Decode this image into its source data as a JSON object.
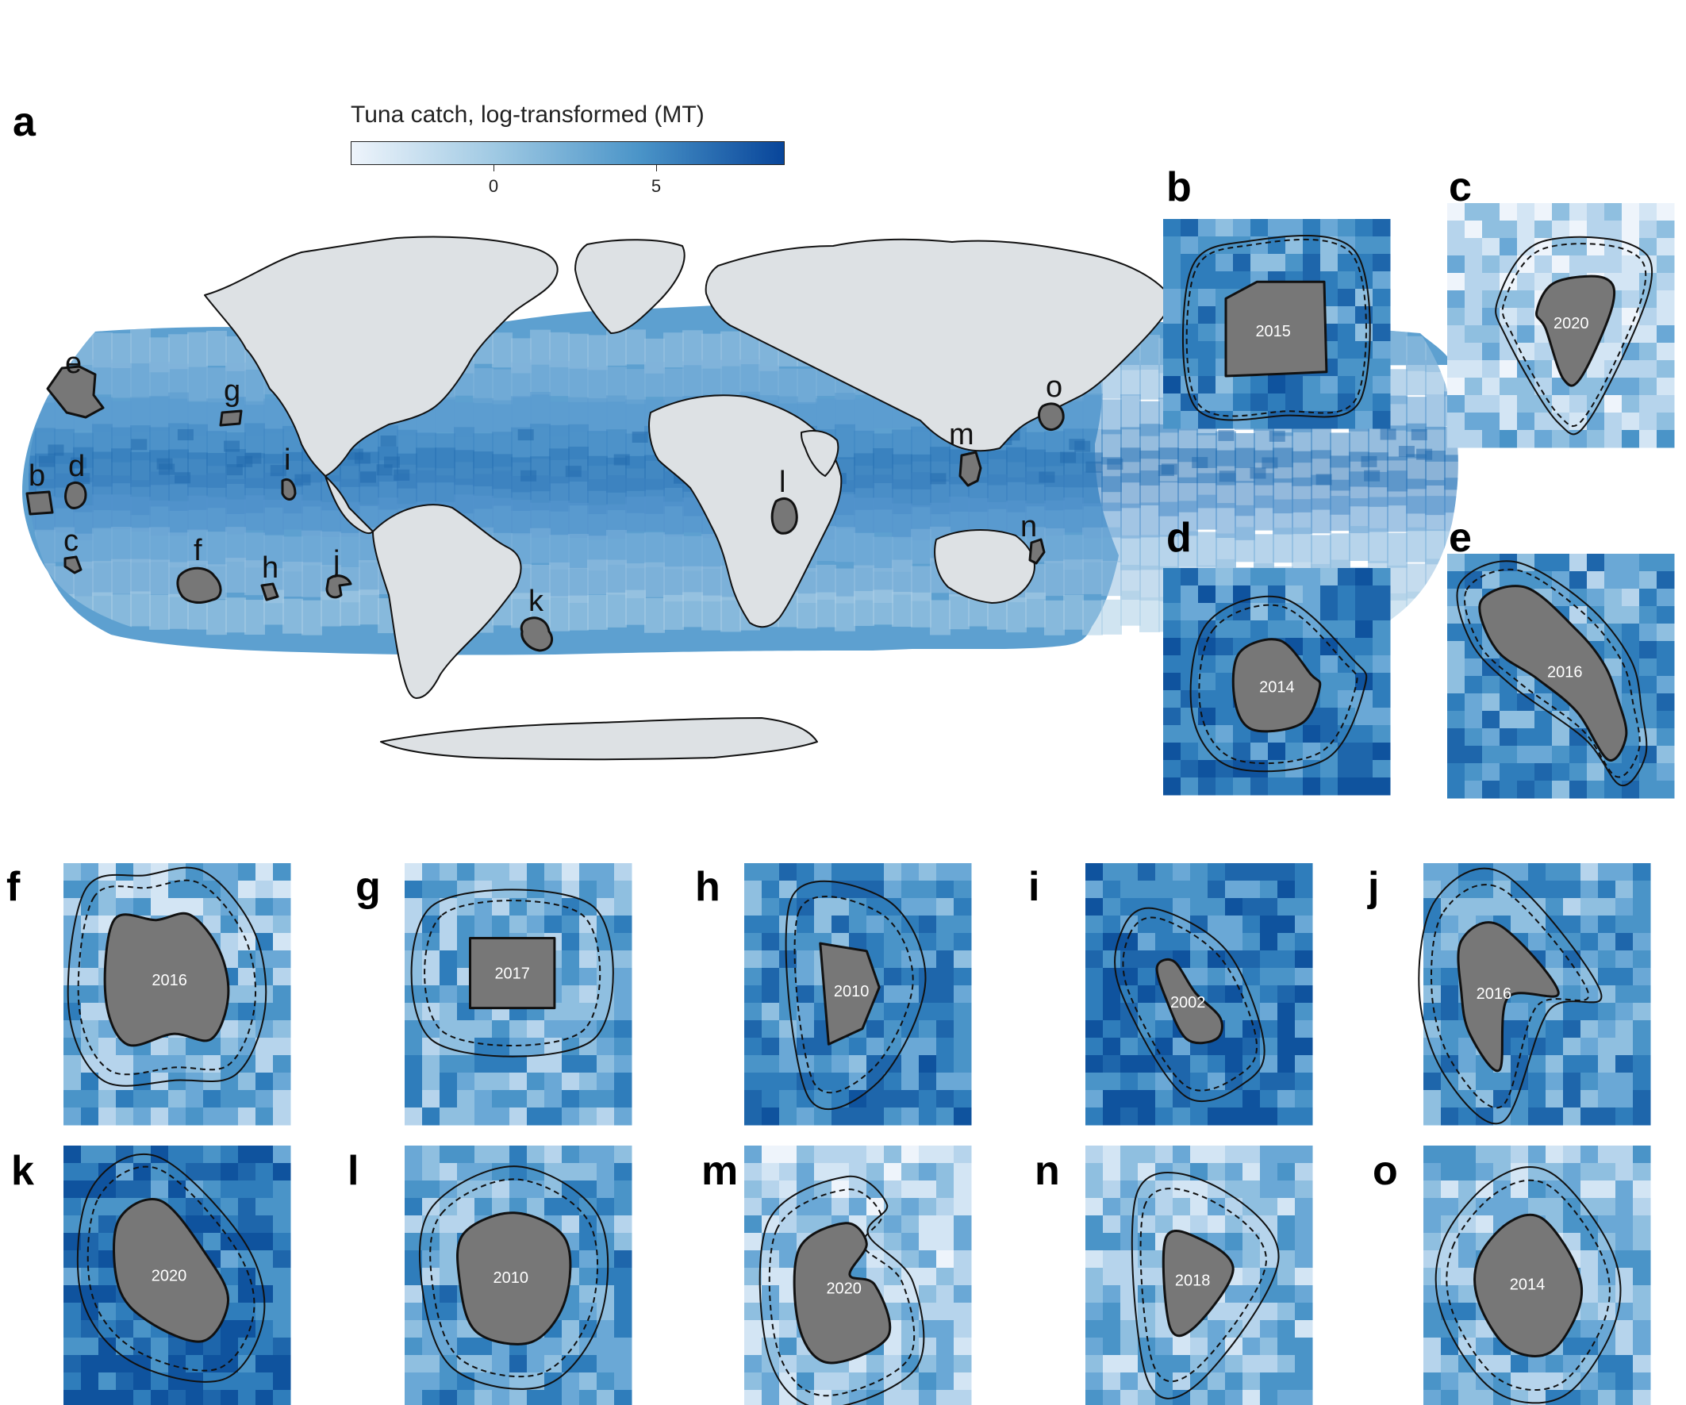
{
  "figure_letter": "a",
  "colorbar": {
    "title": "Tuna catch, log-transformed (MT)",
    "ticks": [
      "0",
      "5"
    ],
    "tick_values": [
      0,
      5
    ],
    "range": [
      -4.5,
      8.7
    ],
    "colors": [
      "#eef4fb",
      "#9fc9e3",
      "#4a94c8",
      "#08459a"
    ]
  },
  "map": {
    "land_color": "#dde1e4",
    "site_fill": "#777777",
    "site_labels": [
      "b",
      "c",
      "d",
      "e",
      "f",
      "g",
      "h",
      "i",
      "j",
      "k",
      "l",
      "m",
      "n",
      "o"
    ]
  },
  "insets": [
    {
      "letter": "b",
      "year": "2015"
    },
    {
      "letter": "c",
      "year": "2020"
    },
    {
      "letter": "d",
      "year": "2014"
    },
    {
      "letter": "e",
      "year": "2016"
    },
    {
      "letter": "f",
      "year": "2016"
    },
    {
      "letter": "g",
      "year": "2017"
    },
    {
      "letter": "h",
      "year": "2010"
    },
    {
      "letter": "i",
      "year": "2002"
    },
    {
      "letter": "j",
      "year": "2016"
    },
    {
      "letter": "k",
      "year": "2020"
    },
    {
      "letter": "l",
      "year": "2010"
    },
    {
      "letter": "m",
      "year": "2020"
    },
    {
      "letter": "n",
      "year": "2018"
    },
    {
      "letter": "o",
      "year": "2014"
    }
  ]
}
